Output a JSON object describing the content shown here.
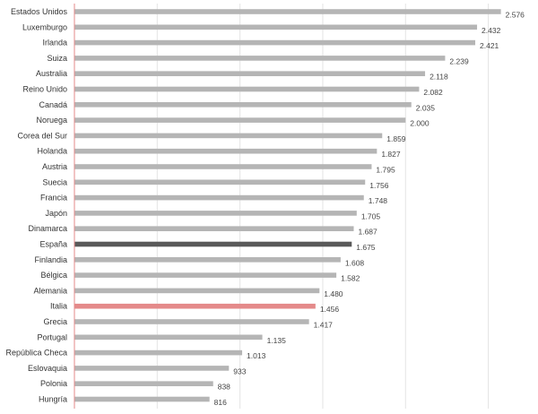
{
  "chart_data": {
    "type": "bar",
    "orientation": "horizontal",
    "categories": [
      "Estados Unidos",
      "Luxemburgo",
      "Irlanda",
      "Suiza",
      "Australia",
      "Reino Unido",
      "Canadá",
      "Noruega",
      "Corea del Sur",
      "Holanda",
      "Austria",
      "Suecia",
      "Francia",
      "Japón",
      "Dinamarca",
      "España",
      "Finlandia",
      "Bélgica",
      "Alemania",
      "Italia",
      "Grecia",
      "Portugal",
      "República Checa",
      "Eslovaquia",
      "Polonia",
      "Hungría"
    ],
    "values": [
      2576,
      2432,
      2421,
      2239,
      2118,
      2082,
      2035,
      2000,
      1859,
      1827,
      1795,
      1756,
      1748,
      1705,
      1687,
      1675,
      1608,
      1582,
      1480,
      1456,
      1417,
      1135,
      1013,
      933,
      838,
      816
    ],
    "value_labels": [
      "2.576",
      "2.432",
      "2.421",
      "2.239",
      "2.118",
      "2.082",
      "2.035",
      "2.000",
      "1.859",
      "1.827",
      "1.795",
      "1.756",
      "1.748",
      "1.705",
      "1.687",
      "1.675",
      "1.608",
      "1.582",
      "1.480",
      "1.456",
      "1.417",
      "1.135",
      "1.013",
      "933",
      "838",
      "816"
    ],
    "xlim": [
      0,
      2800
    ],
    "grid": true,
    "colors": {
      "default": "#b5b5b5",
      "highlight_dark": "#5a5a5a",
      "highlight_red": "#e48a8a",
      "axis": "#e48a8a",
      "grid": "#e4e4e4"
    },
    "highlights": {
      "España": "highlight_dark",
      "Italia": "highlight_red"
    },
    "title": "",
    "xlabel": "",
    "ylabel": ""
  }
}
